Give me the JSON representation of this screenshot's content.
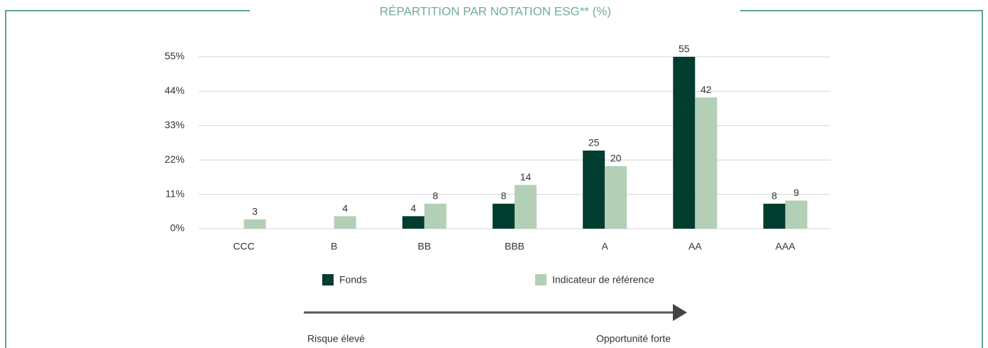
{
  "chart_data": {
    "type": "bar",
    "title": "RÉPARTITION PAR NOTATION ESG** (%)",
    "categories": [
      "CCC",
      "B",
      "BB",
      "BBB",
      "A",
      "AA",
      "AAA"
    ],
    "series": [
      {
        "name": "Fonds",
        "color": "#003d2e",
        "values": [
          null,
          null,
          4,
          8,
          25,
          55,
          8
        ]
      },
      {
        "name": "Indicateur de référence",
        "color": "#b3cfb5",
        "values": [
          3,
          4,
          8,
          14,
          20,
          42,
          9
        ]
      }
    ],
    "ylim": [
      0,
      55
    ],
    "yticks": [
      {
        "value": 0,
        "label": "0%"
      },
      {
        "value": 11,
        "label": "11%"
      },
      {
        "value": 22,
        "label": "22%"
      },
      {
        "value": 33,
        "label": "33%"
      },
      {
        "value": 44,
        "label": "44%"
      },
      {
        "value": 55,
        "label": "55%"
      }
    ],
    "grid": true,
    "annotations": [
      "Risque élevé",
      "Opportunité forte"
    ]
  }
}
